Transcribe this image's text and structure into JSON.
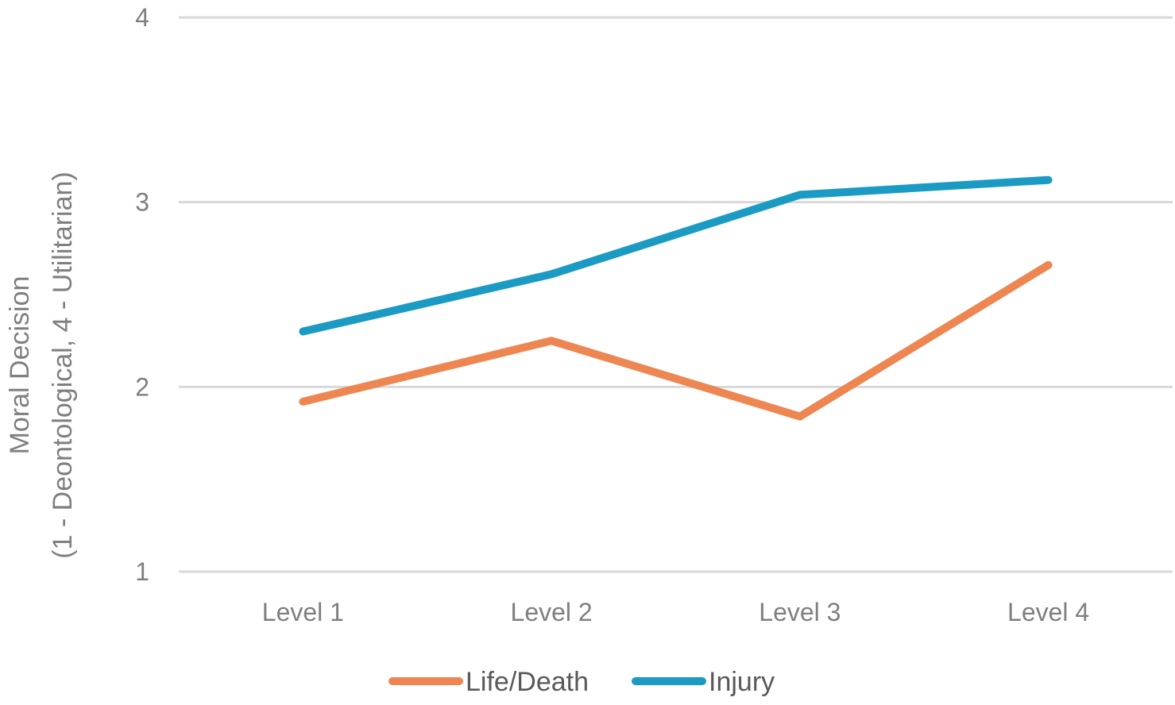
{
  "chart_data": {
    "type": "line",
    "categories": [
      "Level 1",
      "Level 2",
      "Level 3",
      "Level 4"
    ],
    "series": [
      {
        "name": "Life/Death",
        "values": [
          1.92,
          2.25,
          1.84,
          2.66
        ],
        "color": "#ED8651"
      },
      {
        "name": "Injury",
        "values": [
          2.3,
          2.61,
          3.04,
          3.12
        ],
        "color": "#1B9AC4"
      }
    ],
    "ylabel_line1": "Moral Decision",
    "ylabel_line2": "(1 - Deontological, 4 - Utilitarian)",
    "ylim": [
      1,
      4
    ],
    "yticks": [
      "1",
      "2",
      "3",
      "4"
    ],
    "grid": true,
    "grid_color": "#d9d9d9",
    "legend_position": "bottom-center"
  }
}
